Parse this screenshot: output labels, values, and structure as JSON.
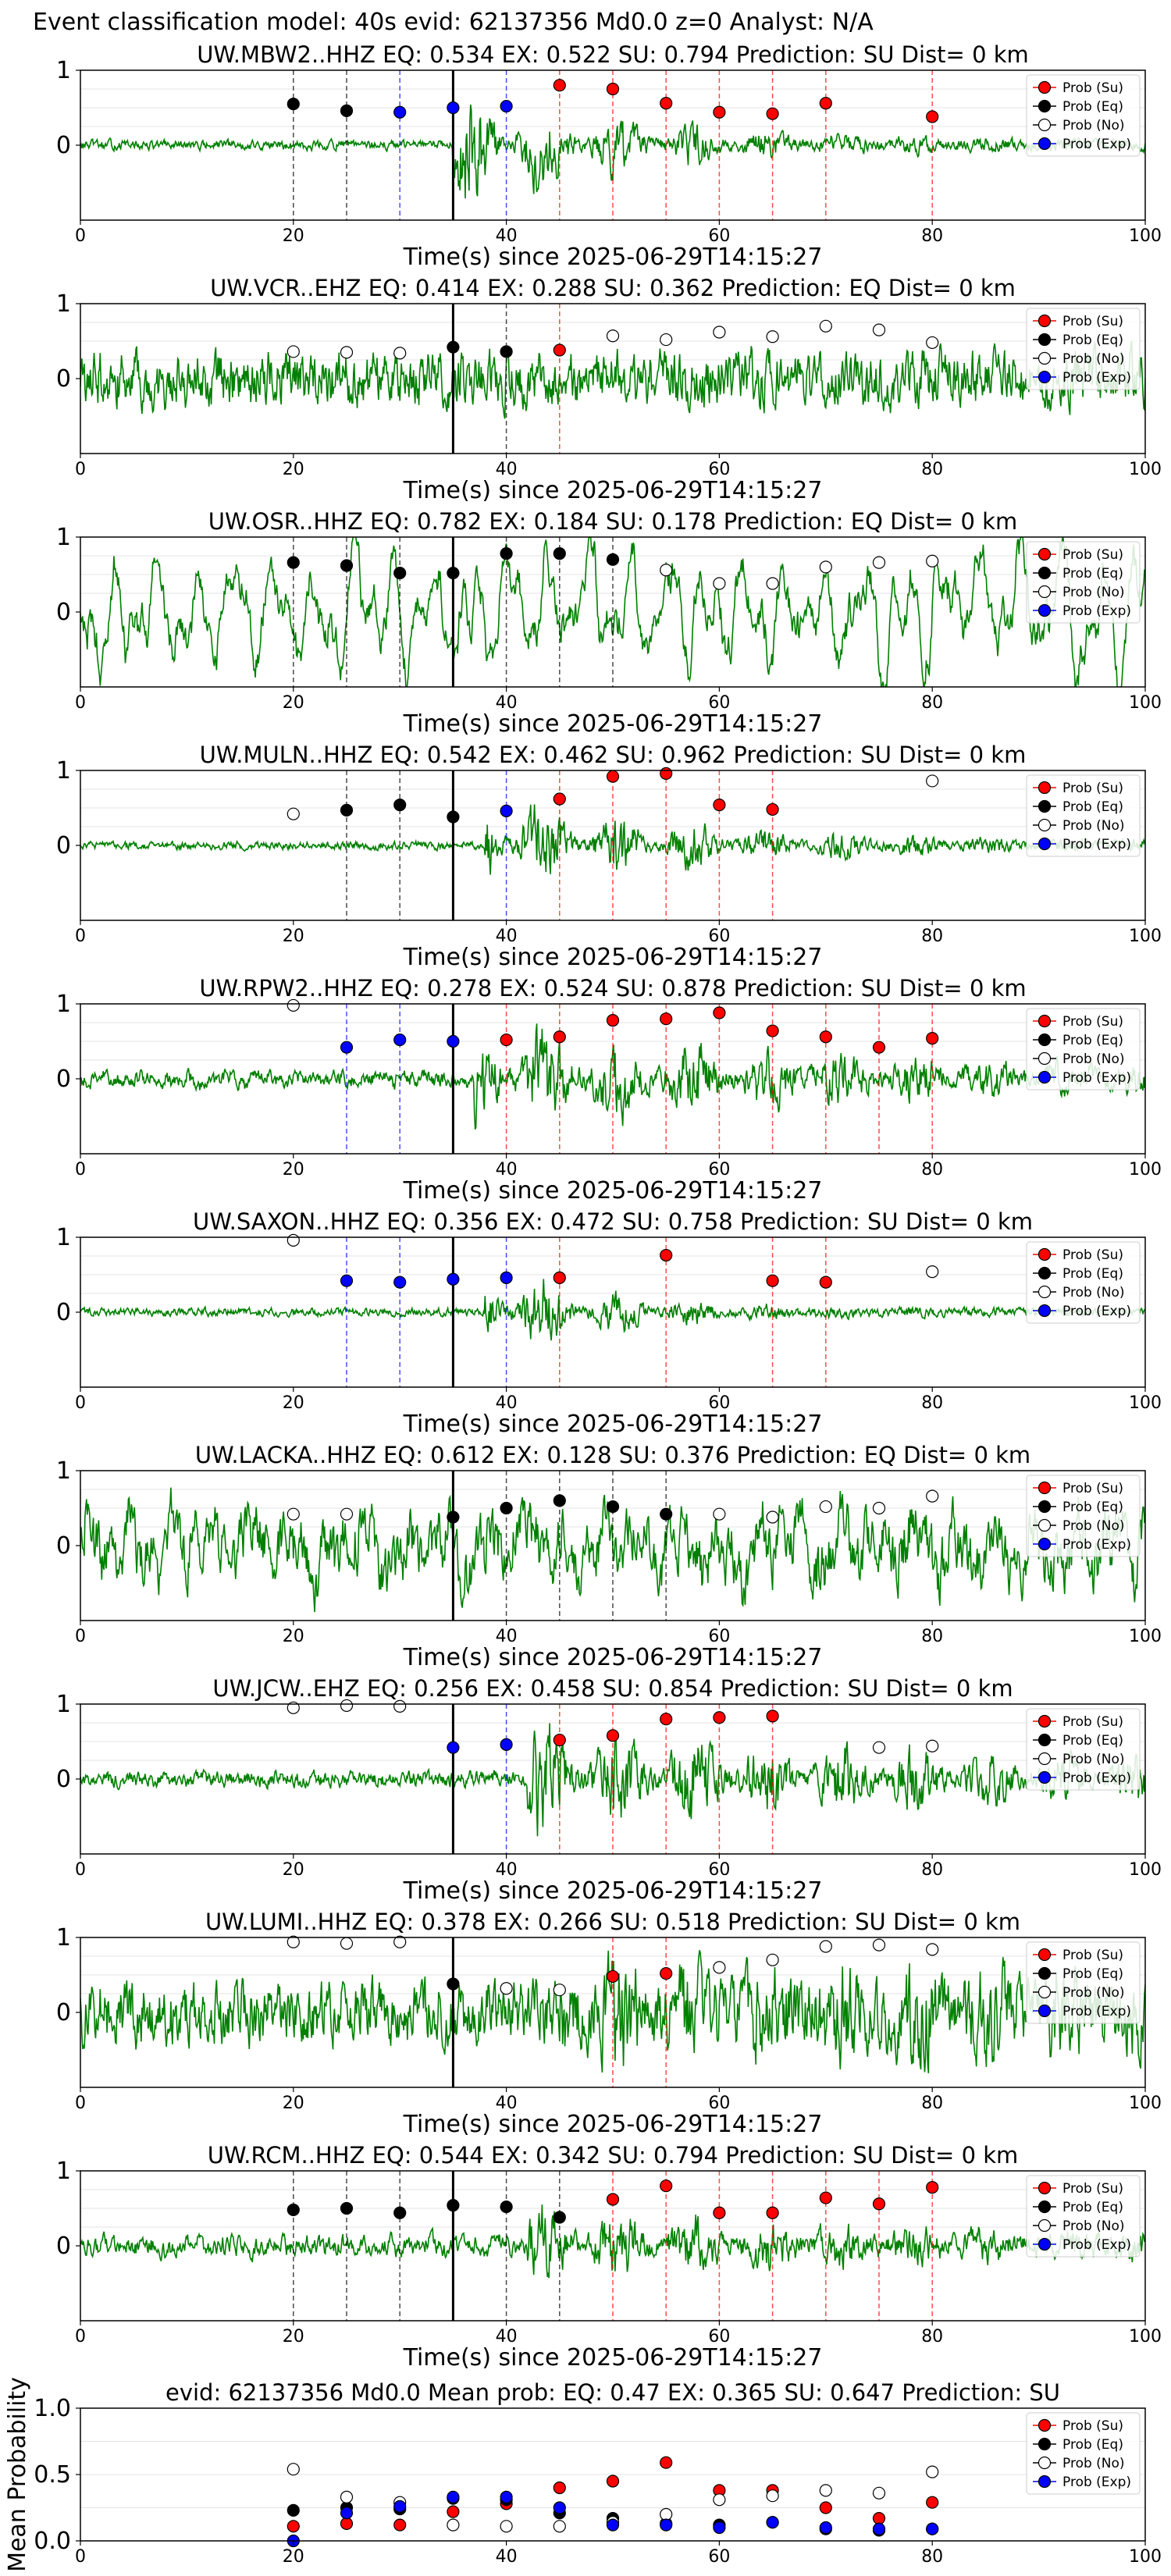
{
  "suptitle": "Event classification model: 40s evid: 62137356 Md0.0 z=0 Analyst: N/A",
  "colors": {
    "su": "#ff0000",
    "eq": "#000000",
    "no": "#ffffff",
    "exp": "#0000ff",
    "trace": "#008000",
    "su_line": "#ff0000",
    "eq_line": "#000000",
    "exp_line": "#0000ff"
  },
  "legend": [
    "Prob (Su)",
    "Prob (Eq)",
    "Prob (No)",
    "Prob (Exp)"
  ],
  "chart_data": [
    {
      "type": "line",
      "title": "UW.MBW2..HHZ    EQ: 0.534   EX: 0.522   SU: 0.794    Prediction: SU     Dist= 0 km",
      "xlabel": "Time(s) since 2025-06-29T14:15:27",
      "xlim": [
        0,
        100
      ],
      "ylim": [
        -1,
        1
      ],
      "xticks": [
        0,
        20,
        40,
        60,
        80,
        100
      ],
      "yticks": [
        0,
        1
      ],
      "waveform": {
        "amp": 0.06,
        "burst_start": 35,
        "burst_amp": 0.6,
        "decay": 0.06,
        "lowfreq": 0
      },
      "points": [
        {
          "x": 20,
          "y": 0.55,
          "class": "eq"
        },
        {
          "x": 25,
          "y": 0.46,
          "class": "eq"
        },
        {
          "x": 30,
          "y": 0.44,
          "class": "exp"
        },
        {
          "x": 35,
          "y": 0.5,
          "class": "exp"
        },
        {
          "x": 40,
          "y": 0.52,
          "class": "exp"
        },
        {
          "x": 45,
          "y": 0.8,
          "class": "su"
        },
        {
          "x": 50,
          "y": 0.75,
          "class": "su"
        },
        {
          "x": 55,
          "y": 0.56,
          "class": "su"
        },
        {
          "x": 60,
          "y": 0.44,
          "class": "su"
        },
        {
          "x": 65,
          "y": 0.42,
          "class": "su"
        },
        {
          "x": 70,
          "y": 0.56,
          "class": "su"
        },
        {
          "x": 80,
          "y": 0.38,
          "class": "su"
        }
      ]
    },
    {
      "type": "line",
      "title": "UW.VCR..EHZ    EQ: 0.414   EX: 0.288   SU: 0.362    Prediction: EQ     Dist= 0 km",
      "xlabel": "Time(s) since 2025-06-29T14:15:27",
      "xlim": [
        0,
        100
      ],
      "ylim": [
        -1,
        1
      ],
      "xticks": [
        0,
        20,
        40,
        60,
        80,
        100
      ],
      "yticks": [
        0,
        1
      ],
      "waveform": {
        "amp": 0.35,
        "burst_start": 0,
        "burst_amp": 0,
        "decay": 0.02,
        "lowfreq": 0
      },
      "points": [
        {
          "x": 20,
          "y": 0.36,
          "class": "no"
        },
        {
          "x": 25,
          "y": 0.35,
          "class": "no"
        },
        {
          "x": 30,
          "y": 0.34,
          "class": "no"
        },
        {
          "x": 35,
          "y": 0.42,
          "class": "eq"
        },
        {
          "x": 40,
          "y": 0.36,
          "class": "eq"
        },
        {
          "x": 45,
          "y": 0.38,
          "class": "su"
        },
        {
          "x": 50,
          "y": 0.57,
          "class": "no"
        },
        {
          "x": 55,
          "y": 0.52,
          "class": "no"
        },
        {
          "x": 60,
          "y": 0.62,
          "class": "no"
        },
        {
          "x": 65,
          "y": 0.56,
          "class": "no"
        },
        {
          "x": 70,
          "y": 0.7,
          "class": "no"
        },
        {
          "x": 75,
          "y": 0.65,
          "class": "no"
        },
        {
          "x": 80,
          "y": 0.48,
          "class": "no"
        }
      ]
    },
    {
      "type": "line",
      "title": "UW.OSR..HHZ    EQ: 0.782   EX: 0.184   SU: 0.178    Prediction: EQ     Dist= 0 km",
      "xlabel": "Time(s) since 2025-06-29T14:15:27",
      "xlim": [
        0,
        100
      ],
      "ylim": [
        -1,
        1
      ],
      "xticks": [
        0,
        20,
        40,
        60,
        80,
        100
      ],
      "yticks": [
        0,
        1
      ],
      "waveform": {
        "amp": 0.1,
        "burst_start": 0,
        "burst_amp": 0,
        "decay": 0.02,
        "lowfreq": 0.7
      },
      "points": [
        {
          "x": 20,
          "y": 0.66,
          "class": "eq"
        },
        {
          "x": 25,
          "y": 0.62,
          "class": "eq"
        },
        {
          "x": 30,
          "y": 0.52,
          "class": "eq"
        },
        {
          "x": 35,
          "y": 0.52,
          "class": "eq"
        },
        {
          "x": 40,
          "y": 0.78,
          "class": "eq"
        },
        {
          "x": 45,
          "y": 0.78,
          "class": "eq"
        },
        {
          "x": 50,
          "y": 0.7,
          "class": "eq"
        },
        {
          "x": 55,
          "y": 0.56,
          "class": "no"
        },
        {
          "x": 60,
          "y": 0.38,
          "class": "no"
        },
        {
          "x": 65,
          "y": 0.38,
          "class": "no"
        },
        {
          "x": 70,
          "y": 0.6,
          "class": "no"
        },
        {
          "x": 75,
          "y": 0.66,
          "class": "no"
        },
        {
          "x": 80,
          "y": 0.68,
          "class": "no"
        }
      ]
    },
    {
      "type": "line",
      "title": "UW.MULN..HHZ    EQ: 0.542   EX: 0.462   SU: 0.962    Prediction: SU     Dist= 0 km",
      "xlabel": "Time(s) since 2025-06-29T14:15:27",
      "xlim": [
        0,
        100
      ],
      "ylim": [
        -1,
        1
      ],
      "xticks": [
        0,
        20,
        40,
        60,
        80,
        100
      ],
      "yticks": [
        0,
        1
      ],
      "waveform": {
        "amp": 0.05,
        "burst_start": 38,
        "burst_amp": 0.5,
        "decay": 0.05,
        "lowfreq": 0
      },
      "points": [
        {
          "x": 20,
          "y": 0.42,
          "class": "no"
        },
        {
          "x": 25,
          "y": 0.47,
          "class": "eq"
        },
        {
          "x": 30,
          "y": 0.54,
          "class": "eq"
        },
        {
          "x": 35,
          "y": 0.38,
          "class": "eq"
        },
        {
          "x": 40,
          "y": 0.46,
          "class": "exp"
        },
        {
          "x": 45,
          "y": 0.62,
          "class": "su"
        },
        {
          "x": 50,
          "y": 0.92,
          "class": "su"
        },
        {
          "x": 55,
          "y": 0.96,
          "class": "su"
        },
        {
          "x": 60,
          "y": 0.54,
          "class": "su"
        },
        {
          "x": 65,
          "y": 0.48,
          "class": "su"
        },
        {
          "x": 80,
          "y": 0.86,
          "class": "no"
        }
      ]
    },
    {
      "type": "line",
      "title": "UW.RPW2..HHZ    EQ: 0.278   EX: 0.524   SU: 0.878    Prediction: SU     Dist= 0 km",
      "xlabel": "Time(s) since 2025-06-29T14:15:27",
      "xlim": [
        0,
        100
      ],
      "ylim": [
        -1,
        1
      ],
      "xticks": [
        0,
        20,
        40,
        60,
        80,
        100
      ],
      "yticks": [
        0,
        1
      ],
      "waveform": {
        "amp": 0.1,
        "burst_start": 37,
        "burst_amp": 0.5,
        "decay": 0.03,
        "lowfreq": 0.05
      },
      "points": [
        {
          "x": 20,
          "y": 0.98,
          "class": "no"
        },
        {
          "x": 25,
          "y": 0.42,
          "class": "exp"
        },
        {
          "x": 30,
          "y": 0.52,
          "class": "exp"
        },
        {
          "x": 35,
          "y": 0.5,
          "class": "exp"
        },
        {
          "x": 40,
          "y": 0.52,
          "class": "su"
        },
        {
          "x": 45,
          "y": 0.56,
          "class": "su"
        },
        {
          "x": 50,
          "y": 0.78,
          "class": "su"
        },
        {
          "x": 55,
          "y": 0.8,
          "class": "su"
        },
        {
          "x": 60,
          "y": 0.88,
          "class": "su"
        },
        {
          "x": 65,
          "y": 0.64,
          "class": "su"
        },
        {
          "x": 70,
          "y": 0.56,
          "class": "su"
        },
        {
          "x": 75,
          "y": 0.42,
          "class": "su"
        },
        {
          "x": 80,
          "y": 0.54,
          "class": "su"
        }
      ]
    },
    {
      "type": "line",
      "title": "UW.SAXON..HHZ    EQ: 0.356   EX: 0.472   SU: 0.758    Prediction: SU     Dist= 0 km",
      "xlabel": "Time(s) since 2025-06-29T14:15:27",
      "xlim": [
        0,
        100
      ],
      "ylim": [
        -1,
        1
      ],
      "xticks": [
        0,
        20,
        40,
        60,
        80,
        100
      ],
      "yticks": [
        0,
        1
      ],
      "waveform": {
        "amp": 0.05,
        "burst_start": 38,
        "burst_amp": 0.45,
        "decay": 0.09,
        "lowfreq": 0
      },
      "points": [
        {
          "x": 20,
          "y": 0.96,
          "class": "no"
        },
        {
          "x": 25,
          "y": 0.42,
          "class": "exp"
        },
        {
          "x": 30,
          "y": 0.4,
          "class": "exp"
        },
        {
          "x": 35,
          "y": 0.44,
          "class": "exp"
        },
        {
          "x": 40,
          "y": 0.46,
          "class": "exp"
        },
        {
          "x": 45,
          "y": 0.46,
          "class": "su"
        },
        {
          "x": 55,
          "y": 0.76,
          "class": "su"
        },
        {
          "x": 65,
          "y": 0.42,
          "class": "su"
        },
        {
          "x": 70,
          "y": 0.4,
          "class": "su"
        },
        {
          "x": 80,
          "y": 0.54,
          "class": "no"
        }
      ]
    },
    {
      "type": "line",
      "title": "UW.LACKA..HHZ    EQ: 0.612   EX: 0.128   SU: 0.376    Prediction: EQ     Dist= 0 km",
      "xlabel": "Time(s) since 2025-06-29T14:15:27",
      "xlim": [
        0,
        100
      ],
      "ylim": [
        -1,
        1
      ],
      "xticks": [
        0,
        20,
        40,
        60,
        80,
        100
      ],
      "yticks": [
        0,
        1
      ],
      "waveform": {
        "amp": 0.35,
        "burst_start": 0,
        "burst_amp": 0,
        "decay": 0.02,
        "lowfreq": 0.35
      },
      "points": [
        {
          "x": 20,
          "y": 0.42,
          "class": "no"
        },
        {
          "x": 25,
          "y": 0.42,
          "class": "no"
        },
        {
          "x": 35,
          "y": 0.38,
          "class": "eq"
        },
        {
          "x": 40,
          "y": 0.5,
          "class": "eq"
        },
        {
          "x": 45,
          "y": 0.6,
          "class": "eq"
        },
        {
          "x": 50,
          "y": 0.52,
          "class": "eq"
        },
        {
          "x": 55,
          "y": 0.42,
          "class": "eq"
        },
        {
          "x": 60,
          "y": 0.42,
          "class": "no"
        },
        {
          "x": 65,
          "y": 0.38,
          "class": "no"
        },
        {
          "x": 70,
          "y": 0.52,
          "class": "no"
        },
        {
          "x": 75,
          "y": 0.5,
          "class": "no"
        },
        {
          "x": 80,
          "y": 0.66,
          "class": "no"
        }
      ]
    },
    {
      "type": "line",
      "title": "UW.JCW..EHZ    EQ: 0.256   EX: 0.458   SU: 0.854    Prediction: SU     Dist= 0 km",
      "xlabel": "Time(s) since 2025-06-29T14:15:27",
      "xlim": [
        0,
        100
      ],
      "ylim": [
        -1,
        1
      ],
      "xticks": [
        0,
        20,
        40,
        60,
        80,
        100
      ],
      "yticks": [
        0,
        1
      ],
      "waveform": {
        "amp": 0.1,
        "burst_start": 42,
        "burst_amp": 0.5,
        "decay": 0.02,
        "lowfreq": 0
      },
      "points": [
        {
          "x": 20,
          "y": 0.95,
          "class": "no"
        },
        {
          "x": 25,
          "y": 0.98,
          "class": "no"
        },
        {
          "x": 30,
          "y": 0.97,
          "class": "no"
        },
        {
          "x": 35,
          "y": 0.42,
          "class": "exp"
        },
        {
          "x": 40,
          "y": 0.46,
          "class": "exp"
        },
        {
          "x": 45,
          "y": 0.52,
          "class": "su"
        },
        {
          "x": 50,
          "y": 0.58,
          "class": "su"
        },
        {
          "x": 55,
          "y": 0.8,
          "class": "su"
        },
        {
          "x": 60,
          "y": 0.82,
          "class": "su"
        },
        {
          "x": 65,
          "y": 0.84,
          "class": "su"
        },
        {
          "x": 75,
          "y": 0.42,
          "class": "no"
        },
        {
          "x": 80,
          "y": 0.44,
          "class": "no"
        }
      ]
    },
    {
      "type": "line",
      "title": "UW.LUMI..HHZ    EQ: 0.378   EX: 0.266   SU: 0.518    Prediction: SU     Dist= 0 km",
      "xlabel": "Time(s) since 2025-06-29T14:15:27",
      "xlim": [
        0,
        100
      ],
      "ylim": [
        -1,
        1
      ],
      "xticks": [
        0,
        20,
        40,
        60,
        80,
        100
      ],
      "yticks": [
        0,
        1
      ],
      "waveform": {
        "amp": 0.4,
        "burst_start": 45,
        "burst_amp": 0.3,
        "decay": 0.01,
        "lowfreq": 0
      },
      "points": [
        {
          "x": 20,
          "y": 0.94,
          "class": "no"
        },
        {
          "x": 25,
          "y": 0.92,
          "class": "no"
        },
        {
          "x": 30,
          "y": 0.94,
          "class": "no"
        },
        {
          "x": 35,
          "y": 0.38,
          "class": "eq"
        },
        {
          "x": 40,
          "y": 0.32,
          "class": "no"
        },
        {
          "x": 45,
          "y": 0.3,
          "class": "no"
        },
        {
          "x": 50,
          "y": 0.48,
          "class": "su"
        },
        {
          "x": 55,
          "y": 0.52,
          "class": "su"
        },
        {
          "x": 60,
          "y": 0.6,
          "class": "no"
        },
        {
          "x": 65,
          "y": 0.7,
          "class": "no"
        },
        {
          "x": 70,
          "y": 0.88,
          "class": "no"
        },
        {
          "x": 75,
          "y": 0.9,
          "class": "no"
        },
        {
          "x": 80,
          "y": 0.84,
          "class": "no"
        }
      ]
    },
    {
      "type": "line",
      "title": "UW.RCM..HHZ    EQ: 0.544   EX: 0.342   SU: 0.794    Prediction: SU     Dist= 0 km",
      "xlabel": "Time(s) since 2025-06-29T14:15:27",
      "xlim": [
        0,
        100
      ],
      "ylim": [
        -1,
        1
      ],
      "xticks": [
        0,
        20,
        40,
        60,
        80,
        100
      ],
      "yticks": [
        0,
        1
      ],
      "waveform": {
        "amp": 0.12,
        "burst_start": 42,
        "burst_amp": 0.3,
        "decay": 0.03,
        "lowfreq": 0.05
      },
      "points": [
        {
          "x": 20,
          "y": 0.48,
          "class": "eq"
        },
        {
          "x": 25,
          "y": 0.5,
          "class": "eq"
        },
        {
          "x": 30,
          "y": 0.44,
          "class": "eq"
        },
        {
          "x": 35,
          "y": 0.54,
          "class": "eq"
        },
        {
          "x": 40,
          "y": 0.52,
          "class": "eq"
        },
        {
          "x": 45,
          "y": 0.38,
          "class": "eq"
        },
        {
          "x": 50,
          "y": 0.62,
          "class": "su"
        },
        {
          "x": 55,
          "y": 0.8,
          "class": "su"
        },
        {
          "x": 60,
          "y": 0.44,
          "class": "su"
        },
        {
          "x": 65,
          "y": 0.44,
          "class": "su"
        },
        {
          "x": 70,
          "y": 0.64,
          "class": "su"
        },
        {
          "x": 75,
          "y": 0.56,
          "class": "su"
        },
        {
          "x": 80,
          "y": 0.78,
          "class": "su"
        }
      ]
    },
    {
      "type": "scatter",
      "title": "evid: 62137356  Md0.0   Mean prob:    EQ: 0.47  EX: 0.365  SU: 0.647   Prediction: SU",
      "ylabel": "Mean Probability",
      "xlim": [
        0,
        100
      ],
      "ylim": [
        0,
        1
      ],
      "xticks": [
        0,
        20,
        40,
        60,
        80,
        100
      ],
      "yticks": [
        0.0,
        0.5,
        1.0
      ],
      "ytick_labels": [
        "0.0",
        "0.5",
        "1.0"
      ],
      "series": [
        {
          "name": "Prob (Su)",
          "class": "su",
          "x": [
            20,
            25,
            30,
            35,
            40,
            45,
            50,
            55,
            60,
            65,
            70,
            75,
            80
          ],
          "y": [
            0.11,
            0.13,
            0.12,
            0.22,
            0.28,
            0.4,
            0.45,
            0.59,
            0.38,
            0.38,
            0.25,
            0.17,
            0.29
          ]
        },
        {
          "name": "Prob (Eq)",
          "class": "eq",
          "x": [
            20,
            25,
            30,
            35,
            40,
            45,
            50,
            55,
            60,
            65,
            70,
            75,
            80
          ],
          "y": [
            0.23,
            0.25,
            0.24,
            0.32,
            0.31,
            0.21,
            0.17,
            0.13,
            0.12,
            0.14,
            0.09,
            0.08,
            0.09
          ]
        },
        {
          "name": "Prob (No)",
          "class": "no",
          "x": [
            20,
            25,
            30,
            35,
            40,
            45,
            50,
            55,
            60,
            65,
            70,
            75,
            80
          ],
          "y": [
            0.54,
            0.33,
            0.29,
            0.12,
            0.11,
            0.11,
            0.14,
            0.2,
            0.31,
            0.34,
            0.38,
            0.36,
            0.52
          ]
        },
        {
          "name": "Prob (Exp)",
          "class": "exp",
          "x": [
            20,
            25,
            30,
            35,
            40,
            45,
            50,
            55,
            60,
            65,
            70,
            75,
            80
          ],
          "y": [
            0.0,
            0.21,
            0.26,
            0.33,
            0.33,
            0.25,
            0.12,
            0.12,
            0.1,
            0.14,
            0.1,
            0.09,
            0.09
          ]
        }
      ]
    }
  ]
}
